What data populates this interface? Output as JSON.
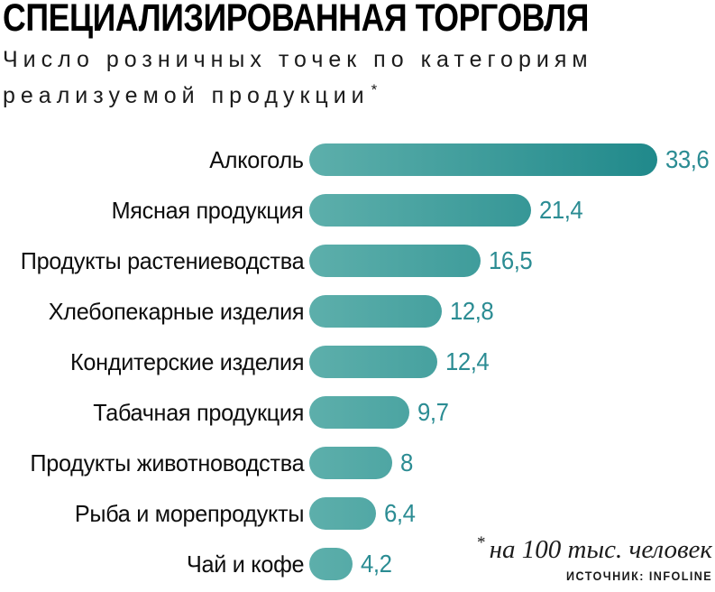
{
  "header": {
    "title": "СПЕЦИАЛИЗИРОВАННАЯ ТОРГОВЛЯ",
    "subtitle_line1": "Число розничных точек по категориям",
    "subtitle_line2": "реализуемой продукции",
    "footnote_marker": "*"
  },
  "chart_data": {
    "type": "bar",
    "orientation": "horizontal",
    "title": "СПЕЦИАЛИЗИРОВАННАЯ ТОРГОВЛЯ",
    "subtitle": "Число розничных точек по категориям реализуемой продукции*",
    "categories": [
      "Алкоголь",
      "Мясная продукция",
      "Продукты растениеводства",
      "Хлебопекарные изделия",
      "Кондитерские изделия",
      "Табачная продукция",
      "Продукты животноводства",
      "Рыба и морепродукты",
      "Чай и кофе"
    ],
    "values": [
      33.6,
      21.4,
      16.5,
      12.8,
      12.4,
      9.7,
      8,
      6.4,
      4.2
    ],
    "value_labels": [
      "33,6",
      "21,4",
      "16,5",
      "12,8",
      "12,4",
      "9,7",
      "8",
      "6,4",
      "4,2"
    ],
    "xlim": [
      0,
      33.6
    ],
    "grid": false,
    "value_label_position": "right-of-bar",
    "bar_gradient_start": "#5dafab",
    "bar_gradient_end": "#20898b",
    "value_label_color": "#2b8c93"
  },
  "footnote": {
    "marker": "*",
    "text": "на 100 тыс. человек"
  },
  "source": "ИСТОЧНИК: INFOLINE"
}
